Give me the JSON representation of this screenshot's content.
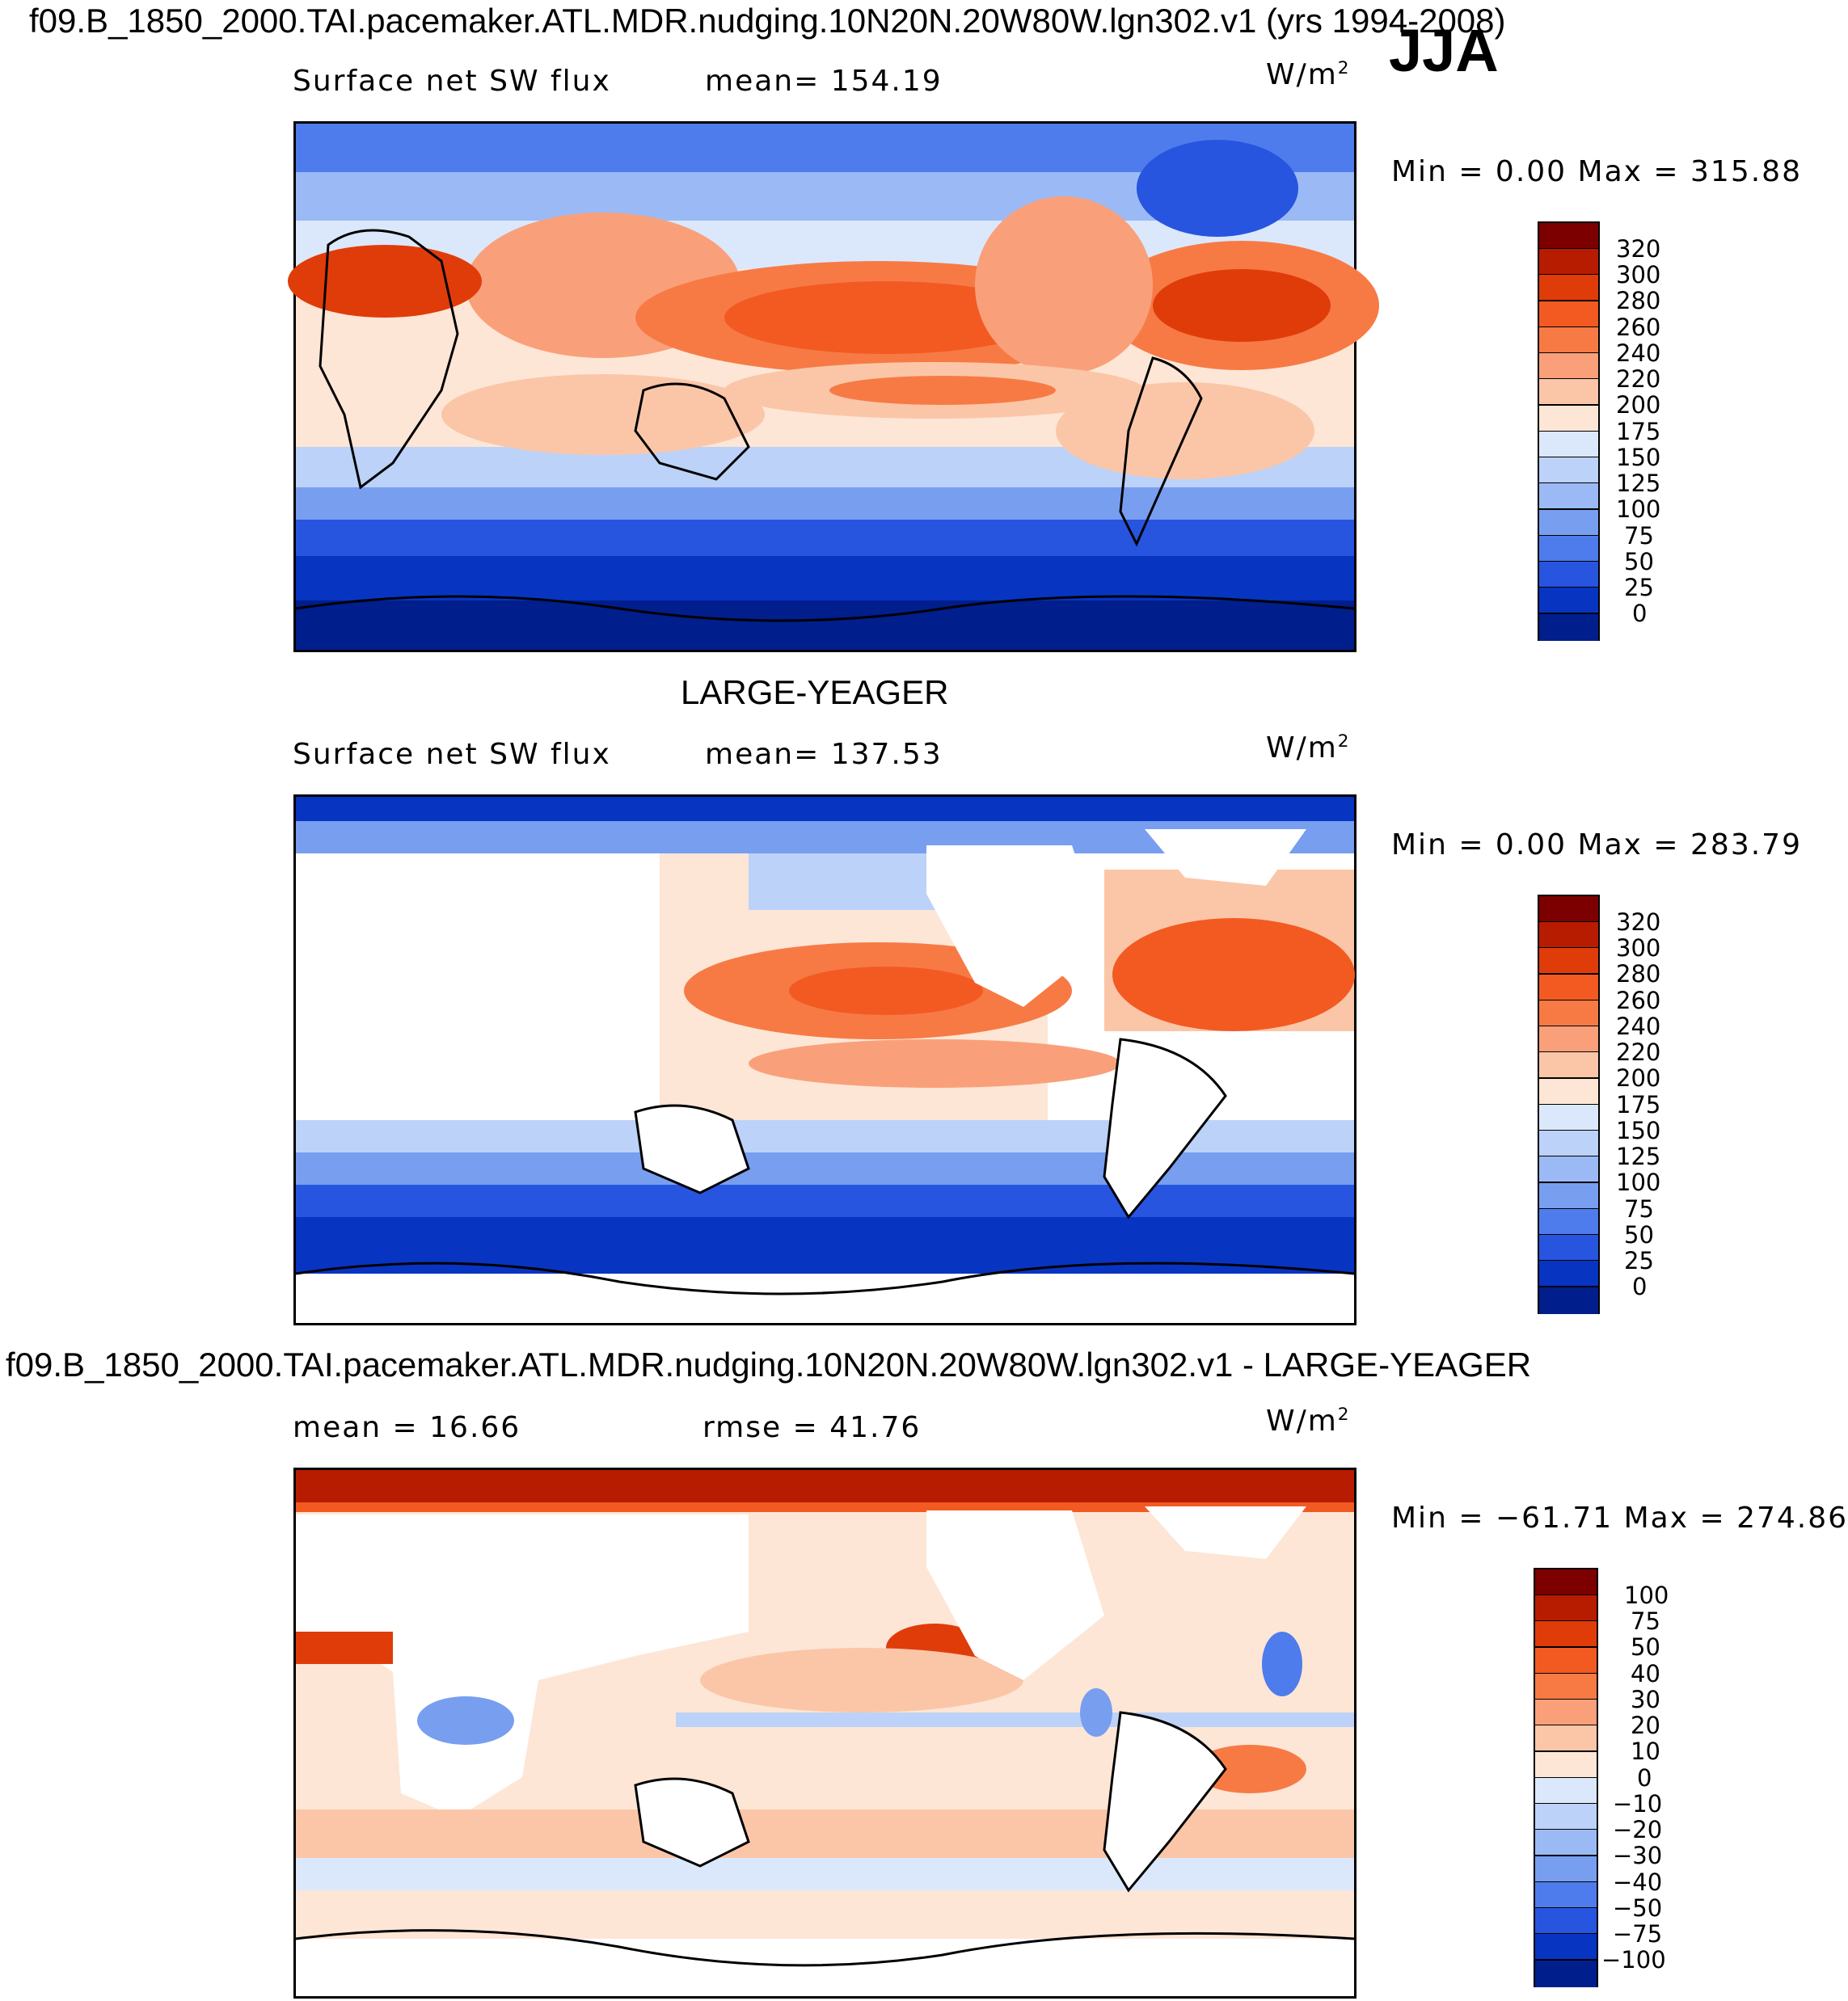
{
  "header": {
    "main_title": "f09.B_1850_2000.TAI.pacemaker.ATL.MDR.nudging.10N20N.20W80W.lgn302.v1 (yrs 1994-2008)",
    "season": "JJA"
  },
  "panels": [
    {
      "id": "model",
      "title": "",
      "variable": "Surface net SW flux",
      "stat_text": "mean= 154.19",
      "units_base": "W/m",
      "units_exp": "2",
      "minmax_text": "Min =    0.00 Max = 315.88",
      "levels": [
        "320",
        "300",
        "280",
        "260",
        "240",
        "220",
        "200",
        "175",
        "150",
        "125",
        "100",
        "75",
        "50",
        "25",
        "0"
      ],
      "colors": [
        "#7d0000",
        "#b81c00",
        "#e03c0a",
        "#f35a22",
        "#f77a45",
        "#f9a07a",
        "#fbc6a8",
        "#fde6d6",
        "#dbe8fb",
        "#bcd2f8",
        "#9bbaf5",
        "#789ef0",
        "#4f7cec",
        "#2755e0",
        "#0834c2",
        "#001e8c"
      ]
    },
    {
      "id": "obs",
      "title": "LARGE-YEAGER",
      "variable": "Surface net SW flux",
      "stat_text": "mean= 137.53",
      "units_base": "W/m",
      "units_exp": "2",
      "minmax_text": "Min =    0.00 Max = 283.79",
      "levels": [
        "320",
        "300",
        "280",
        "260",
        "240",
        "220",
        "200",
        "175",
        "150",
        "125",
        "100",
        "75",
        "50",
        "25",
        "0"
      ],
      "colors": [
        "#7d0000",
        "#b81c00",
        "#e03c0a",
        "#f35a22",
        "#f77a45",
        "#f9a07a",
        "#fbc6a8",
        "#fde6d6",
        "#dbe8fb",
        "#bcd2f8",
        "#9bbaf5",
        "#789ef0",
        "#4f7cec",
        "#2755e0",
        "#0834c2",
        "#001e8c"
      ]
    },
    {
      "id": "diff",
      "title": "f09.B_1850_2000.TAI.pacemaker.ATL.MDR.nudging.10N20N.20W80W.lgn302.v1 - LARGE-YEAGER",
      "stat_text": "mean =   16.66",
      "stat2_text": "rmse =   41.76",
      "units_base": "W/m",
      "units_exp": "2",
      "minmax_text": "Min = −61.71 Max = 274.86",
      "levels": [
        "100",
        "75",
        "50",
        "40",
        "30",
        "20",
        "10",
        "0",
        "−10",
        "−20",
        "−30",
        "−40",
        "−50",
        "−75",
        "−100"
      ],
      "colors": [
        "#7d0000",
        "#b81c00",
        "#e03c0a",
        "#f35a22",
        "#f77a45",
        "#f9a07a",
        "#fbc6a8",
        "#fde6d6",
        "#dbe8fb",
        "#bcd2f8",
        "#9bbaf5",
        "#789ef0",
        "#4f7cec",
        "#2755e0",
        "#0834c2",
        "#001e8c"
      ]
    }
  ]
}
